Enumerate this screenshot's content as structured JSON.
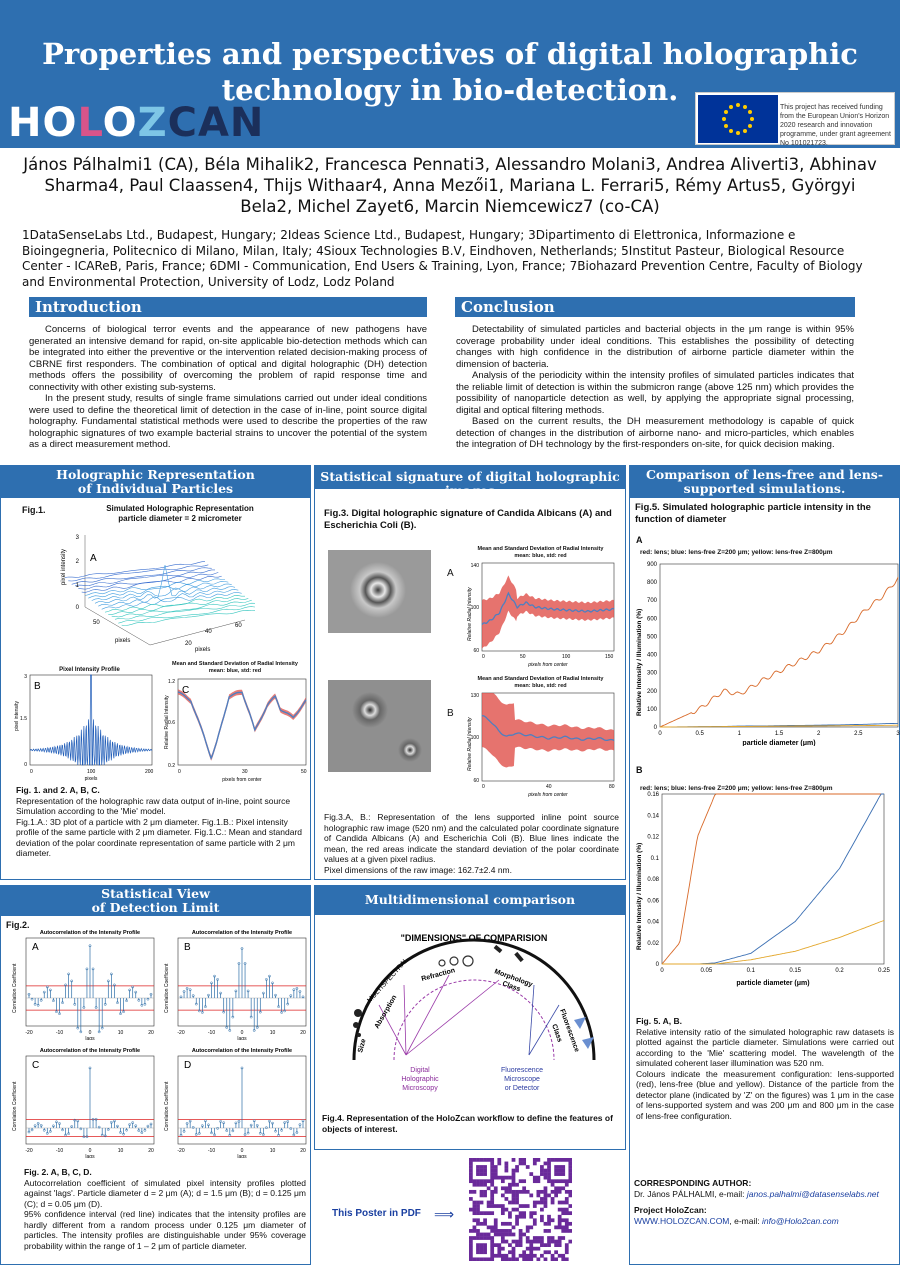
{
  "header": {
    "title_line1": "Properties and perspectives of digital holographic",
    "title_line2": "technology in bio-detection.",
    "logo_text": "HOLOZCAN",
    "eu_text": "This project has received funding from the European Union's Horizon 2020 research and innovation programme, under grant agreement No 101021723."
  },
  "authors": "János Pálhalmi1 (CA), Béla Mihalik2, Francesca Pennati3, Alessandro Molani3, Andrea Aliverti3, Abhinav Sharma4, Paul Claassen4, Thijs Withaar4, Anna Mezői1, Mariana L. Ferrari5, Rémy Artus5, Györgyi Bela2, Michel Zayet6, Marcin Niemcewicz7 (co-CA)",
  "affiliations": "1DataSenseLabs Ltd., Budapest, Hungary; 2Ideas Science Ltd., Budapest, Hungary; 3Dipartimento di Elettronica, Informazione e Bioingegneria, Politecnico di Milano, Milan, Italy; 4Sioux Technologies B.V, Eindhoven, Netherlands; 5Institut Pasteur, Biological Resource Center - ICAReB, Paris, France; 6DMI - Communication, End Users & Training, Lyon, France; 7Biohazard Prevention Centre, Faculty of Biology and Environmental Protection, University of Lodz, Lodz Poland",
  "introduction": {
    "heading": "Introduction",
    "p1": "Concerns of biological terror events and the appearance of new pathogens have generated an intensive demand for rapid, on-site applicable bio-detection methods which can be integrated into either the preventive or the intervention related decision-making process of CBRNE first responders. The combination of optical and digital holographic (DH) detection methods offers the possibility of overcoming the problem of rapid response time and connectivity with other existing sub-systems.",
    "p2": "In the present study, results of single frame simulations carried out under ideal conditions were used to define the theoretical limit of detection in the case of in-line, point source digital holography. Fundamental statistical methods were used to describe the properties of the raw holographic signatures of two example bacterial strains to uncover the potential of the system as a direct measurement method."
  },
  "conclusion": {
    "heading": "Conclusion",
    "p1": "Detectability of simulated particles and bacterial objects in the μm range is within 95% coverage probability under ideal conditions. This establishes the possibility of detecting changes with high confidence in the distribution of airborne particle diameter within the dimension of bacteria.",
    "p2": "Analysis of the periodicity within the intensity profiles of simulated particles indicates that the reliable limit of detection is within the submicron range (above 125 nm) which provides the possibility of nanoparticle detection as well, by applying the appropriate signal processing, digital and optical filtering methods.",
    "p3": "Based on the current results, the DH measurement methodology is capable of quick detection of changes in the distribution of airborne nano- and micro-particles, which enables the integration of DH technology by the first-responders on-site, for quick decision making."
  },
  "holo": {
    "heading1": "Holographic Representation",
    "heading2": "of Individual Particles",
    "fig_label": "Fig.1.",
    "plot_title1": "Simulated Holographic Representation",
    "plot_title2": "particle diameter = 2 micrometer",
    "label_A": "A",
    "label_B": "B",
    "label_C": "C",
    "zlabel": "pixel intensity",
    "xlabel": "pixels",
    "ylabel": "pixels",
    "profile_title": "Pixel Intensity Profile",
    "profile_ylabel": "pixel intensity",
    "profile_xlabel": "pixels",
    "radial_title1": "Mean and Standard Deviation of Radial Intensity",
    "radial_title2": "mean: blue, std: red",
    "radial_ylabel": "Relative Radial Intensity",
    "radial_xlabel": "pixels from center",
    "caption_bold": "Fig. 1. and 2. A, B, C.",
    "caption": "Representation of the holographic raw data output of in-line, point source Simulation according to the 'Mie' model.",
    "caption2": "Fig.1.A.: 3D plot of a particle with 2 μm diameter. Fig.1.B.: Pixel intensity profile of the same particle with 2 μm diameter. Fig.1.C.: Mean and standard deviation of the polar coordinate representation of same particle with 2 μm diameter."
  },
  "stat_sig": {
    "heading": "Statistical signature of digital holographic images",
    "fig_title": "Fig.3. Digital holographic signature of Candida Albicans (A) and Escherichia Coli (B).",
    "plot_title1": "Mean and Standard Deviation of Radial Intensity",
    "plot_title2": "mean: blue, std: red",
    "ylabel": "Relative Radial Intensity",
    "xlabel": "pixels from center",
    "label_A": "A",
    "label_B": "B",
    "caption": "Fig.3.A, B.: Representation of the lens supported inline point source holographic raw image (520 nm) and the calculated polar coordinate signature of Candida Albicans (A) and Escherichia Coli (B). Blue lines indicate the mean, the red areas indicate the standard deviation of the polar coordinate values at a given pixel radius.",
    "caption2": "Pixel dimensions of the raw image: 162.7±2.4 nm."
  },
  "comparison": {
    "heading1": "Comparison of lens-free and lens-",
    "heading2": "supported simulations.",
    "fig_title": "Fig.5. Simulated holographic particle intensity in the function of diameter",
    "label_A": "A",
    "label_B": "B",
    "legend": "red: lens; blue: lens-free Z=200 μm; yellow: lens-free Z=800μm",
    "ylabel": "Relative Intensity / Illumination (%)",
    "xlabel": "particle diameter (μm)",
    "caption_bold": "Fig. 5. A, B.",
    "caption": "Relative intensity ratio of the simulated holographic raw datasets is plotted against the particle diameter. Simulations were carried out according to the 'Mie' scattering model. The wavelength of the simulated coherent laser illumination was 520 nm.",
    "caption2": "Colours indicate the measurement configuration: lens-supported (red), lens-free (blue and yellow). Distance of the particle from the detector plane (indicated by 'Z' on the figures) was 1 μm in the case of lens-supported system and was 200 μm and 800 μm in the case of lens-free configuration."
  },
  "stat_view": {
    "heading1": "Statistical View",
    "heading2": "of Detection Limit",
    "fig_label": "Fig.2.",
    "plot_title": "Autocorrelation of the Intensity Profile",
    "ylabel": "Correlation Coefficient",
    "xlabel": "lags",
    "labels": [
      "A",
      "B",
      "C",
      "D"
    ],
    "caption_bold": "Fig. 2. A, B, C, D.",
    "caption": "Autocorrelation coefficient of simulated pixel intensity profiles plotted against 'lags'. Particle diameter d = 2 μm (A); d = 1.5 μm (B); d = 0.125 μm (C); d = 0.05 μm (D).",
    "caption2": "95% confidence interval (red line) indicates that the intensity profiles are hardly different from a random process under 0.125 μm diameter of particles. The intensity profiles are distinguishable under 95% coverage probability within the range of 1 – 2 μm of particle diameter."
  },
  "multi": {
    "heading": "Multidimensional comparison",
    "diagram_title": "\"DIMENSIONS\" OF COMPARISION",
    "dims": [
      "Size",
      "Absorption",
      "MULTISPECTRAL",
      "Refraction",
      "Morphology",
      "Class",
      "Fluorescence",
      "Class"
    ],
    "left_label1": "Digital",
    "left_label2": "Holographic",
    "left_label3": "Microscopy",
    "right_label1": "Fluorescence",
    "right_label2": "Microscope",
    "right_label3": "or Detector",
    "caption": "Fig.4. Representation of the HoloZcan workflow to define the features of objects of interest."
  },
  "footer": {
    "pdf_label": "This Poster in PDF",
    "corr_head": "CORRESPONDING AUTHOR:",
    "corr_name": "Dr. János PÁLHALMI, e-mail:",
    "corr_email": "janos.palhalmi@datasenselabs.net",
    "proj_head": "Project HoloZcan:",
    "proj_web": "WWW.HOLOZCAN.COM",
    "proj_sep": ", e-mail:",
    "proj_email": "info@Holo2can.com"
  },
  "colors": {
    "primary": "#2e6fb0",
    "red": "#e0504a",
    "blue": "#4f7fc0",
    "orange": "#d86a2a",
    "yellow": "#e3a72c"
  },
  "chart_data": [
    {
      "type": "line",
      "title": "Pixel Intensity Profile",
      "xlim": [
        0,
        200
      ],
      "ylim": [
        0,
        3
      ],
      "x": [
        0,
        80,
        90,
        95,
        100,
        105,
        110,
        120,
        200
      ],
      "series": [
        {
          "values": [
            0.5,
            0.7,
            1.2,
            2.0,
            3.0,
            2.0,
            1.2,
            0.7,
            0.5
          ]
        }
      ]
    },
    {
      "type": "line",
      "title": "Mean and Standard Deviation of Radial Intensity",
      "xlim": [
        0,
        50
      ],
      "ylim": [
        0.2,
        1.2
      ],
      "x": [
        0,
        5,
        10,
        13,
        15,
        20,
        25,
        28,
        30,
        35,
        38,
        40,
        45,
        50
      ],
      "series": [
        {
          "name": "mean: blue",
          "values": [
            1.05,
            0.95,
            0.55,
            0.28,
            0.45,
            1.0,
            1.05,
            0.8,
            0.6,
            0.9,
            1.0,
            0.85,
            0.75,
            0.95
          ]
        }
      ]
    },
    {
      "type": "line",
      "title": "Mean and Standard Deviation of Radial Intensity",
      "xlim": [
        0,
        150
      ],
      "ylim": [
        60,
        140
      ],
      "x": [
        0,
        10,
        20,
        30,
        40,
        50,
        60,
        80,
        100,
        120,
        150
      ],
      "series": [
        {
          "name": "mean: blue",
          "values": [
            84,
            88,
            95,
            112,
            100,
            104,
            100,
            98,
            97,
            96,
            98
          ]
        }
      ]
    },
    {
      "type": "line",
      "title": "Mean and Standard Deviation of Radial Intensity",
      "xlim": [
        0,
        80
      ],
      "ylim": [
        60,
        130
      ],
      "x": [
        0,
        5,
        10,
        15,
        20,
        30,
        40,
        50,
        60,
        70,
        80
      ],
      "series": [
        {
          "name": "mean: blue",
          "values": [
            112,
            108,
            100,
            95,
            98,
            96,
            94,
            95,
            93,
            94,
            92
          ]
        }
      ]
    },
    {
      "type": "line",
      "title": "Fig.5 A",
      "xlabel": "particle diameter (μm)",
      "ylabel": "Relative Intensity / Illumination (%)",
      "xlim": [
        0,
        3
      ],
      "ylim": [
        0,
        900
      ],
      "x": [
        0,
        0.5,
        0.8,
        1,
        1.3,
        1.6,
        2,
        2.3,
        2.6,
        2.8,
        3
      ],
      "series": [
        {
          "name": "red",
          "values": [
            0,
            100,
            200,
            180,
            260,
            330,
            420,
            520,
            650,
            720,
            820
          ]
        },
        {
          "name": "blue",
          "values": [
            0,
            2,
            3,
            5,
            6,
            8,
            10,
            12,
            15,
            18,
            20
          ]
        },
        {
          "name": "yellow",
          "values": [
            0,
            1,
            2,
            3,
            4,
            5,
            6,
            7,
            8,
            9,
            10
          ]
        }
      ]
    },
    {
      "type": "line",
      "title": "Fig.5 B",
      "xlabel": "particle diameter (μm)",
      "ylabel": "Relative Intensity / Illumination (%)",
      "xlim": [
        0,
        0.25
      ],
      "ylim": [
        0,
        0.16
      ],
      "x": [
        0,
        0.02,
        0.04,
        0.06,
        0.1,
        0.15,
        0.2,
        0.25
      ],
      "series": [
        {
          "name": "red",
          "values": [
            0,
            0.02,
            0.12,
            0.16,
            0.16,
            0.16,
            0.16,
            0.16
          ]
        },
        {
          "name": "blue",
          "values": [
            0,
            0,
            0,
            0.001,
            0.01,
            0.04,
            0.09,
            0.165
          ]
        },
        {
          "name": "yellow",
          "values": [
            0,
            0,
            0,
            0,
            0.004,
            0.012,
            0.025,
            0.041
          ]
        }
      ]
    }
  ]
}
